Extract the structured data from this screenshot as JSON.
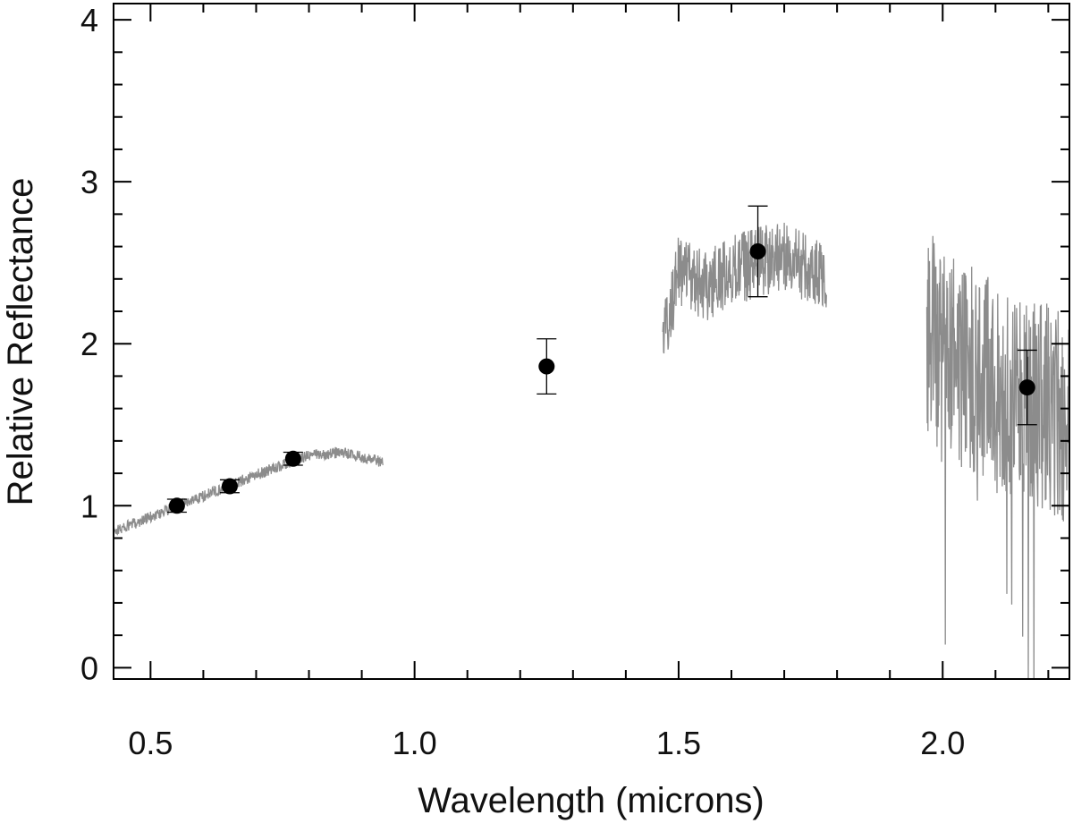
{
  "chart_data": {
    "type": "scatter",
    "xlabel": "Wavelength  (microns)",
    "ylabel": "Relative Reflectance",
    "xlim": [
      0.43,
      2.24
    ],
    "ylim": [
      -0.07,
      4.1
    ],
    "x_ticks": [
      0.5,
      1.0,
      1.5,
      2.0
    ],
    "x_tick_labels": [
      "0.5",
      "1.0",
      "1.5",
      "2.0"
    ],
    "y_ticks": [
      0,
      1,
      2,
      3,
      4
    ],
    "y_tick_labels": [
      "0",
      "1",
      "2",
      "3",
      "4"
    ],
    "grid": false,
    "colors": {
      "points": "#000000",
      "spectrum": "#8c8c8c",
      "axes": "#000000"
    },
    "series": [
      {
        "kind": "photometry-points-with-error-bars",
        "points": [
          {
            "x": 0.55,
            "y": 1.0,
            "err": 0.04
          },
          {
            "x": 0.65,
            "y": 1.12,
            "err": 0.04
          },
          {
            "x": 0.77,
            "y": 1.29,
            "err": 0.04
          },
          {
            "x": 1.25,
            "y": 1.86,
            "err": 0.17
          },
          {
            "x": 1.65,
            "y": 2.57,
            "err": 0.28
          },
          {
            "x": 2.16,
            "y": 1.73,
            "err": 0.23
          }
        ]
      },
      {
        "kind": "visible-spectrum",
        "x_range": [
          0.43,
          0.94
        ],
        "trend": [
          [
            0.43,
            0.84
          ],
          [
            0.5,
            0.93
          ],
          [
            0.6,
            1.06
          ],
          [
            0.7,
            1.19
          ],
          [
            0.8,
            1.31
          ],
          [
            0.86,
            1.33
          ],
          [
            0.94,
            1.27
          ]
        ],
        "noise": 0.035
      },
      {
        "kind": "h-band-spectrum",
        "x_range": [
          1.47,
          1.78
        ],
        "trend": [
          [
            1.47,
            2.0
          ],
          [
            1.5,
            2.45
          ],
          [
            1.55,
            2.35
          ],
          [
            1.6,
            2.45
          ],
          [
            1.65,
            2.5
          ],
          [
            1.7,
            2.55
          ],
          [
            1.75,
            2.45
          ],
          [
            1.78,
            2.4
          ]
        ],
        "noise": 0.22
      },
      {
        "kind": "k-band-spectrum",
        "x_range": [
          1.97,
          2.24
        ],
        "trend": [
          [
            1.97,
            2.1
          ],
          [
            2.0,
            1.9
          ],
          [
            2.05,
            1.85
          ],
          [
            2.1,
            1.8
          ],
          [
            2.15,
            1.6
          ],
          [
            2.2,
            1.6
          ],
          [
            2.24,
            1.5
          ]
        ],
        "noise": 0.65
      }
    ]
  }
}
